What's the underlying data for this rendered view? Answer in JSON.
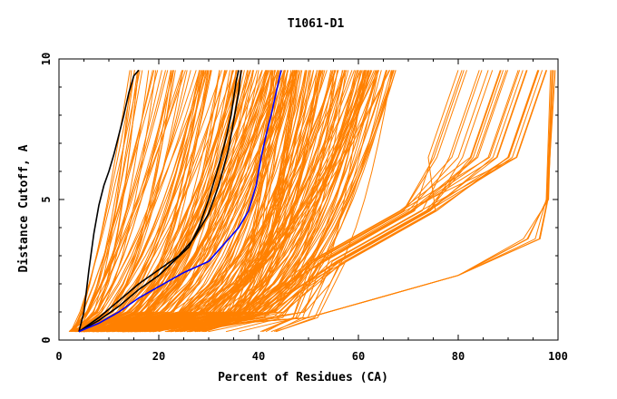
{
  "chart_data": {
    "type": "line",
    "title": "T1061-D1",
    "xlabel": "Percent of Residues (CA)",
    "ylabel": "Distance Cutoff, A",
    "xlim": [
      0,
      100
    ],
    "ylim": [
      0,
      10
    ],
    "xticks": [
      "0",
      "20",
      "40",
      "60",
      "80",
      "100"
    ],
    "yticks": [
      "0",
      "5",
      "10"
    ],
    "grid": false,
    "legend": "none",
    "colors": {
      "models": "#ff8000",
      "highlight_black": "#000000",
      "highlight_blue": "#0000ff"
    },
    "series": [
      {
        "color": "#000000",
        "x": [
          4,
          5,
          6,
          7,
          8,
          9,
          10,
          11,
          12,
          13,
          14,
          15,
          16
        ],
        "y": [
          0.3,
          1.0,
          2.5,
          3.8,
          4.8,
          5.5,
          6.0,
          6.6,
          7.3,
          8.0,
          8.8,
          9.4,
          9.6
        ]
      },
      {
        "color": "#000000",
        "x": [
          4,
          8,
          12,
          16,
          20,
          24,
          27,
          30,
          32,
          34,
          35,
          36,
          36.5
        ],
        "y": [
          0.3,
          0.8,
          1.4,
          2.0,
          2.5,
          3.0,
          3.6,
          4.5,
          5.5,
          6.8,
          7.8,
          8.8,
          9.6
        ]
      },
      {
        "color": "#000000",
        "x": [
          4,
          8,
          12,
          16,
          20,
          23,
          26,
          28,
          30,
          32,
          33.5,
          34.5,
          35,
          35.5,
          36
        ],
        "y": [
          0.3,
          0.7,
          1.2,
          1.8,
          2.3,
          2.8,
          3.3,
          4.0,
          5.0,
          6.2,
          7.2,
          8.0,
          8.6,
          9.2,
          9.6
        ]
      },
      {
        "color": "#0000ff",
        "x": [
          4,
          8,
          12,
          16,
          20,
          25,
          30,
          33,
          36,
          38,
          39.5,
          40.5,
          41.5,
          42.5,
          43.5,
          44.5
        ],
        "y": [
          0.3,
          0.6,
          1.0,
          1.5,
          1.9,
          2.4,
          2.8,
          3.4,
          4.0,
          4.6,
          5.5,
          6.5,
          7.3,
          8.0,
          8.8,
          9.6
        ]
      }
    ]
  }
}
